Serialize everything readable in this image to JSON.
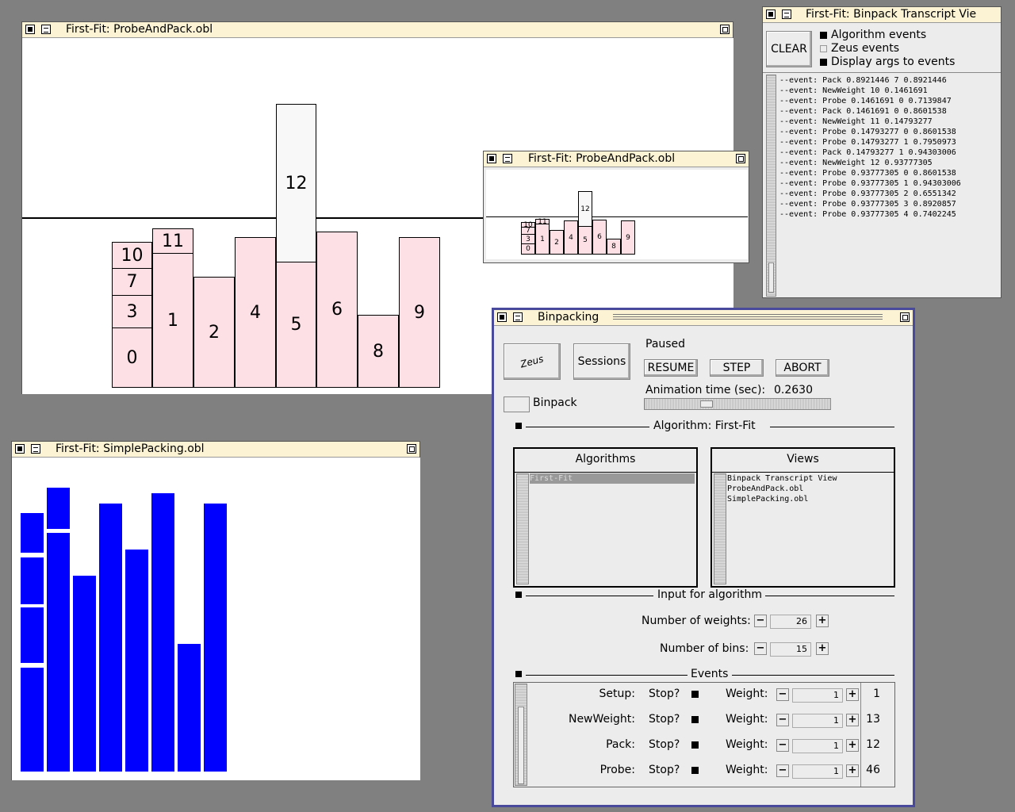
{
  "probe_main": {
    "title": "First-Fit: ProbeAndPack.obl",
    "bins": [
      {
        "label": "0"
      },
      {
        "label": "3"
      },
      {
        "label": "7"
      },
      {
        "label": "10"
      },
      {
        "label": "11"
      },
      {
        "label": "1"
      },
      {
        "label": "2"
      },
      {
        "label": "4"
      },
      {
        "label": "12"
      },
      {
        "label": "5"
      },
      {
        "label": "6"
      },
      {
        "label": "8"
      },
      {
        "label": "9"
      }
    ]
  },
  "probe_small": {
    "title": "First-Fit: ProbeAndPack.obl",
    "bins": [
      {
        "label": "0"
      },
      {
        "label": "3"
      },
      {
        "label": "7"
      },
      {
        "label": "10"
      },
      {
        "label": "11"
      },
      {
        "label": "1"
      },
      {
        "label": "2"
      },
      {
        "label": "4"
      },
      {
        "label": "12"
      },
      {
        "label": "5"
      },
      {
        "label": "6"
      },
      {
        "label": "8"
      },
      {
        "label": "9"
      }
    ]
  },
  "transcript": {
    "title": "First-Fit: Binpack Transcript Vie",
    "clear_label": "CLEAR",
    "options": [
      {
        "label": "Algorithm events",
        "checked": true
      },
      {
        "label": "Zeus events",
        "checked": false
      },
      {
        "label": "Display args to events",
        "checked": true
      }
    ],
    "lines": [
      "--event: Pack 0.8921446 7 0.8921446",
      "--event: NewWeight 10 0.1461691",
      "--event: Probe 0.1461691 0 0.7139847",
      "--event: Pack 0.1461691 0 0.8601538",
      "--event: NewWeight 11 0.14793277",
      "--event: Probe 0.14793277 0 0.8601538",
      "--event: Probe 0.14793277 1 0.7950973",
      "--event: Pack 0.14793277 1 0.94303006",
      "--event: NewWeight 12 0.93777305",
      "--event: Probe 0.93777305 0 0.8601538",
      "--event: Probe 0.93777305 1 0.94303006",
      "--event: Probe 0.93777305 2 0.6551342",
      "--event: Probe 0.93777305 3 0.8920857",
      "--event: Probe 0.93777305 4 0.7402245"
    ]
  },
  "simple": {
    "title": "First-Fit: SimplePacking.obl"
  },
  "control": {
    "title": "Binpacking",
    "zeus_label": "Zeus",
    "sessions_label": "Sessions",
    "status": "Paused",
    "resume_label": "RESUME",
    "step_label": "STEP",
    "abort_label": "ABORT",
    "anim_label": "Animation time (sec):",
    "anim_value": "0.2630",
    "anim_fraction": 0.32,
    "session_name": "Binpack",
    "algorithm_header": "Algorithm:  First-Fit",
    "algorithms_title": "Algorithms",
    "algorithms": [
      "First-Fit"
    ],
    "views_title": "Views",
    "views": [
      "Binpack Transcript View",
      "ProbeAndPack.obl",
      "SimplePacking.obl"
    ],
    "input_header": "Input for algorithm",
    "weights_label": "Number of weights:",
    "weights_value": "26",
    "bins_label": "Number of bins:",
    "bins_value": "15",
    "events_header": "Events",
    "stop_label": "Stop?",
    "weight_label": "Weight:",
    "minus": "−",
    "plus": "+",
    "events": [
      {
        "name": "Setup:",
        "weight": "1",
        "count": "1"
      },
      {
        "name": "NewWeight:",
        "weight": "1",
        "count": "13"
      },
      {
        "name": "Pack:",
        "weight": "1",
        "count": "12"
      },
      {
        "name": "Probe:",
        "weight": "1",
        "count": "46"
      }
    ]
  },
  "colors": {
    "bin_fill": "#fde0e6",
    "bar_fill": "#0000ff",
    "title_bg": "#fbf3d4"
  }
}
